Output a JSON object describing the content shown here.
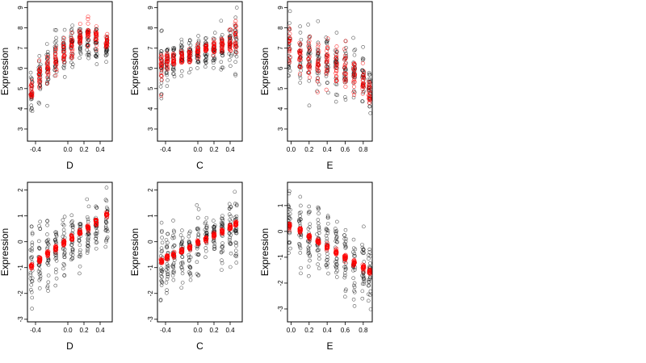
{
  "chart_data": [
    {
      "type": "scatter",
      "row": 0,
      "col": 0,
      "xlabel": "D",
      "ylabel": "Expression",
      "xlim": [
        -0.5,
        0.55
      ],
      "ylim": [
        2.4,
        9.3
      ],
      "xticks": [
        -0.4,
        0.0,
        0.2,
        0.4
      ],
      "xtick_labels": [
        "-0.4",
        "0.0",
        "0.2",
        "0.4"
      ],
      "yticks": [
        3,
        4,
        5,
        6,
        7,
        8,
        9
      ],
      "ytick_labels": [
        "3",
        "4",
        "5",
        "6",
        "7",
        "8",
        "9"
      ],
      "x_groups": [
        -0.45,
        -0.35,
        -0.25,
        -0.15,
        -0.05,
        0.05,
        0.15,
        0.25,
        0.35,
        0.48
      ],
      "observed": {
        "color": "#000000",
        "y_center": [
          5.0,
          5.6,
          6.1,
          6.5,
          6.8,
          7.1,
          7.3,
          7.4,
          7.2,
          7.0
        ],
        "y_spread": [
          1.0,
          1.1,
          1.1,
          1.0,
          1.0,
          0.9,
          0.9,
          0.9,
          0.9,
          0.8
        ]
      },
      "fitted": {
        "color": "#ff0000",
        "y_center": [
          4.9,
          5.5,
          6.0,
          6.4,
          6.8,
          7.2,
          7.5,
          7.8,
          7.6,
          7.4
        ],
        "y_spread": [
          0.5,
          0.6,
          0.6,
          0.6,
          0.6,
          0.6,
          0.5,
          0.5,
          0.5,
          0.4
        ]
      }
    },
    {
      "type": "scatter",
      "row": 0,
      "col": 1,
      "xlabel": "C",
      "ylabel": "Expression",
      "xlim": [
        -0.5,
        0.55
      ],
      "ylim": [
        2.4,
        9.3
      ],
      "xticks": [
        -0.4,
        0.0,
        0.2,
        0.4
      ],
      "xtick_labels": [
        "-0.4",
        "0.0",
        "0.2",
        "0.4"
      ],
      "yticks": [
        3,
        4,
        5,
        6,
        7,
        8,
        9
      ],
      "ytick_labels": [
        "3",
        "4",
        "5",
        "6",
        "7",
        "8",
        "9"
      ],
      "x_groups": [
        -0.45,
        -0.38,
        -0.3,
        -0.2,
        -0.1,
        0.0,
        0.1,
        0.2,
        0.3,
        0.4,
        0.47
      ],
      "observed": {
        "color": "#000000",
        "y_center": [
          6.0,
          6.2,
          6.4,
          6.5,
          6.6,
          6.8,
          6.9,
          7.0,
          7.1,
          7.2,
          7.3
        ],
        "y_spread": [
          1.3,
          1.0,
          0.9,
          0.9,
          0.8,
          0.8,
          0.8,
          0.8,
          0.9,
          1.0,
          1.4
        ]
      },
      "fitted": {
        "color": "#ff0000",
        "y_center": [
          6.1,
          6.3,
          6.4,
          6.5,
          6.6,
          6.8,
          7.0,
          7.1,
          7.2,
          7.3,
          7.6
        ],
        "y_spread": [
          0.8,
          0.4,
          0.3,
          0.3,
          0.3,
          0.3,
          0.3,
          0.3,
          0.4,
          0.5,
          1.0
        ]
      }
    },
    {
      "type": "scatter",
      "row": 0,
      "col": 2,
      "xlabel": "E",
      "ylabel": "Expression",
      "xlim": [
        -0.04,
        0.9
      ],
      "ylim": [
        2.4,
        9.3
      ],
      "xticks": [
        0.0,
        0.2,
        0.4,
        0.6,
        0.8
      ],
      "xtick_labels": [
        "0.0",
        "0.2",
        "0.4",
        "0.6",
        "0.8"
      ],
      "yticks": [
        3,
        4,
        5,
        6,
        7,
        8,
        9
      ],
      "ytick_labels": [
        "3",
        "4",
        "5",
        "6",
        "7",
        "8",
        "9"
      ],
      "x_groups": [
        -0.02,
        0.1,
        0.2,
        0.3,
        0.4,
        0.5,
        0.6,
        0.7,
        0.8,
        0.87
      ],
      "observed": {
        "color": "#000000",
        "y_center": [
          6.8,
          6.6,
          6.5,
          6.4,
          6.3,
          6.2,
          6.0,
          5.8,
          5.5,
          5.0
        ],
        "y_spread": [
          1.3,
          1.3,
          1.3,
          1.3,
          1.2,
          1.2,
          1.2,
          1.1,
          1.1,
          1.0
        ]
      },
      "fitted": {
        "color": "#ff0000",
        "y_center": [
          7.0,
          6.6,
          6.4,
          6.3,
          6.2,
          6.1,
          5.9,
          5.7,
          5.4,
          4.9
        ],
        "y_spread": [
          1.0,
          1.0,
          1.0,
          1.0,
          1.0,
          1.0,
          0.9,
          0.9,
          0.8,
          0.5
        ]
      }
    },
    {
      "type": "scatter",
      "row": 1,
      "col": 0,
      "xlabel": "D",
      "ylabel": "Expression",
      "xlim": [
        -0.5,
        0.55
      ],
      "ylim": [
        -3.1,
        2.3
      ],
      "xticks": [
        -0.4,
        0.0,
        0.2,
        0.4
      ],
      "xtick_labels": [
        "-0.4",
        "0.0",
        "0.2",
        "0.4"
      ],
      "yticks": [
        -3,
        -2,
        -1,
        0,
        1,
        2
      ],
      "ytick_labels": [
        "-3",
        "-2",
        "-1",
        "0",
        "1",
        "2"
      ],
      "x_groups": [
        -0.45,
        -0.35,
        -0.25,
        -0.15,
        -0.05,
        0.05,
        0.15,
        0.25,
        0.35,
        0.48
      ],
      "observed": {
        "color": "#000000",
        "y_center": [
          -1.0,
          -0.7,
          -0.4,
          -0.2,
          0.0,
          0.2,
          0.3,
          0.4,
          0.6,
          0.8
        ],
        "y_spread": [
          1.3,
          1.2,
          1.2,
          1.1,
          1.1,
          1.0,
          1.0,
          1.0,
          0.9,
          0.9
        ]
      },
      "fitted": {
        "color": "#ff0000",
        "y_center": [
          -0.95,
          -0.68,
          -0.45,
          -0.25,
          -0.05,
          0.15,
          0.35,
          0.55,
          0.75,
          1.05
        ],
        "y_spread": [
          0.1,
          0.1,
          0.1,
          0.1,
          0.1,
          0.1,
          0.1,
          0.1,
          0.1,
          0.1
        ]
      }
    },
    {
      "type": "scatter",
      "row": 1,
      "col": 1,
      "xlabel": "C",
      "ylabel": "Expression",
      "xlim": [
        -0.5,
        0.55
      ],
      "ylim": [
        -3.1,
        2.3
      ],
      "xticks": [
        -0.4,
        0.0,
        0.2,
        0.4
      ],
      "xtick_labels": [
        "-0.4",
        "0.0",
        "0.2",
        "0.4"
      ],
      "yticks": [
        -3,
        -2,
        -1,
        0,
        1,
        2
      ],
      "ytick_labels": [
        "-3",
        "-2",
        "-1",
        "0",
        "1",
        "2"
      ],
      "x_groups": [
        -0.45,
        -0.38,
        -0.3,
        -0.2,
        -0.1,
        0.0,
        0.1,
        0.2,
        0.3,
        0.4,
        0.47
      ],
      "observed": {
        "color": "#000000",
        "y_center": [
          -0.8,
          -0.6,
          -0.5,
          -0.4,
          -0.2,
          -0.1,
          0.1,
          0.2,
          0.3,
          0.5,
          0.6
        ],
        "y_spread": [
          1.3,
          1.1,
          1.0,
          1.0,
          0.9,
          0.9,
          0.9,
          0.9,
          0.9,
          1.0,
          1.3
        ]
      },
      "fitted": {
        "color": "#ff0000",
        "y_center": [
          -0.75,
          -0.6,
          -0.5,
          -0.38,
          -0.22,
          -0.05,
          0.1,
          0.25,
          0.4,
          0.55,
          0.7
        ],
        "y_spread": [
          0.08,
          0.08,
          0.08,
          0.08,
          0.08,
          0.08,
          0.08,
          0.08,
          0.08,
          0.08,
          0.1
        ]
      }
    },
    {
      "type": "scatter",
      "row": 1,
      "col": 2,
      "xlabel": "E",
      "ylabel": "Expression",
      "xlim": [
        -0.04,
        0.9
      ],
      "ylim": [
        -3.5,
        1.9
      ],
      "xticks": [
        0.0,
        0.2,
        0.4,
        0.6,
        0.8
      ],
      "xtick_labels": [
        "0.0",
        "0.2",
        "0.4",
        "0.6",
        "0.8"
      ],
      "yticks": [
        -3,
        -2,
        -1,
        0,
        1
      ],
      "ytick_labels": [
        "-3",
        "-2",
        "-1",
        "0",
        "1"
      ],
      "x_groups": [
        -0.02,
        0.1,
        0.2,
        0.3,
        0.4,
        0.5,
        0.6,
        0.7,
        0.8,
        0.87
      ],
      "observed": {
        "color": "#000000",
        "y_center": [
          0.3,
          0.0,
          -0.2,
          -0.4,
          -0.5,
          -0.7,
          -1.0,
          -1.3,
          -1.5,
          -1.7
        ],
        "y_spread": [
          1.3,
          1.2,
          1.2,
          1.1,
          1.1,
          1.1,
          1.2,
          1.2,
          1.2,
          1.1
        ]
      },
      "fitted": {
        "color": "#ff0000",
        "y_center": [
          0.2,
          0.05,
          -0.2,
          -0.4,
          -0.6,
          -0.8,
          -1.0,
          -1.2,
          -1.4,
          -1.55
        ],
        "y_spread": [
          0.15,
          0.1,
          0.1,
          0.1,
          0.1,
          0.1,
          0.1,
          0.1,
          0.1,
          0.1
        ]
      }
    }
  ]
}
